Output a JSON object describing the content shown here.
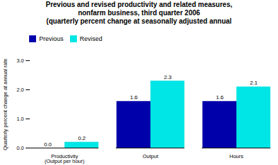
{
  "chart_data": {
    "type": "bar",
    "title": "Previous and revised productivity and related measures,\nnonfarm business, third quarter 2006\n(quarterly percent change at seasonally adjusted annual",
    "categories": [
      "Productivity\n(Output per hour)",
      "Output",
      "Hours"
    ],
    "series": [
      {
        "name": "Previous",
        "color": "#0000AA",
        "values": [
          0.0,
          1.6,
          1.6
        ],
        "value_labels": [
          "0.0",
          "1.6",
          "1.6"
        ]
      },
      {
        "name": "Revised",
        "color": "#00E5E5",
        "values": [
          0.2,
          2.3,
          2.1
        ],
        "value_labels": [
          "0.2",
          "2.3",
          "2.1"
        ]
      }
    ],
    "ylabel": "Quarterly percent change at annual rate",
    "ylim": [
      0.0,
      3.0
    ],
    "yticks": [
      {
        "value": 0.0,
        "label": "0.0"
      },
      {
        "value": 1.0,
        "label": "1.0"
      },
      {
        "value": 2.0,
        "label": "2.0"
      },
      {
        "value": 3.0,
        "label": "3.0"
      }
    ],
    "data_labels": true,
    "legend": "upper left",
    "grid": false
  }
}
